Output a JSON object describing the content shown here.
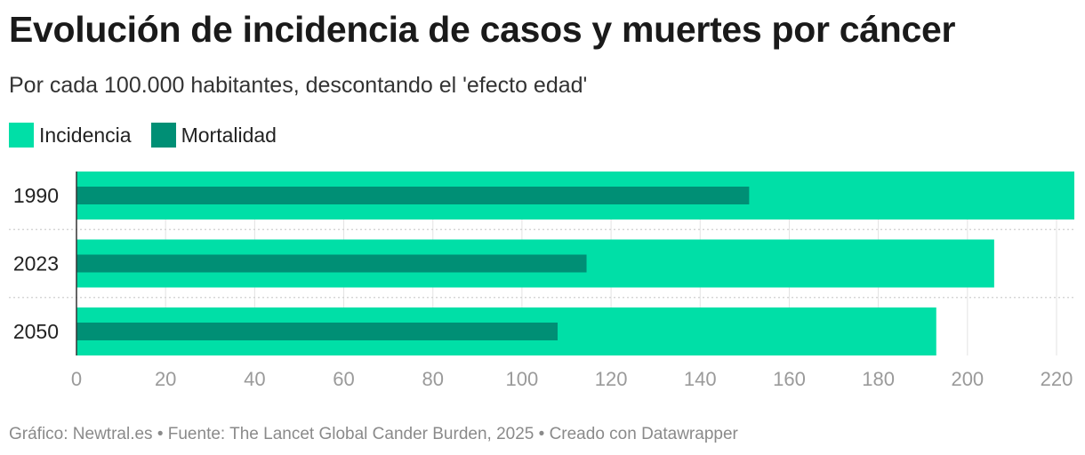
{
  "title": "Evolución de incidencia de casos y muertes por cáncer",
  "subtitle": "Por cada 100.000 habitantes, descontando el 'efecto edad'",
  "footer": "Gráfico: Newtral.es • Fuente: The Lancet Global Cander Burden, 2025 • Creado con Datawrapper",
  "colors": {
    "incidencia": "#00dfa7",
    "mortalidad": "#008f75"
  },
  "chart_data": {
    "type": "bar",
    "orientation": "horizontal",
    "categories": [
      "1990",
      "2023",
      "2050"
    ],
    "series": [
      {
        "name": "Incidencia",
        "values": [
          224,
          206,
          193
        ]
      },
      {
        "name": "Mortalidad",
        "values": [
          151,
          114.5,
          108
        ]
      }
    ],
    "xlim": [
      0,
      220
    ],
    "xticks": [
      "0",
      "20",
      "40",
      "60",
      "80",
      "100",
      "120",
      "140",
      "160",
      "180",
      "200",
      "220"
    ],
    "grid": true,
    "legend": "top-left"
  }
}
